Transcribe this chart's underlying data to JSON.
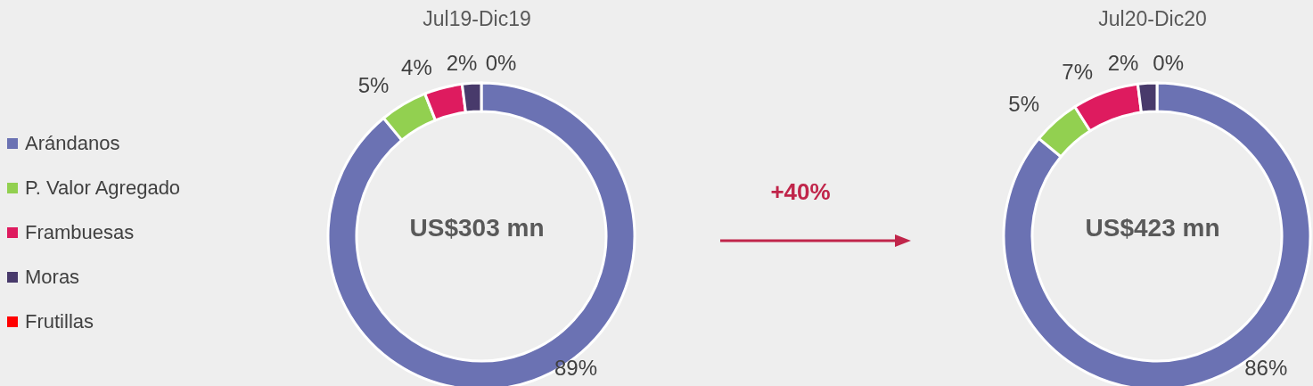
{
  "chart_data": [
    {
      "type": "donut",
      "title": "Jul19-Dic19",
      "categories": [
        "Arándanos",
        "P. Valor Agregado",
        "Frambuesas",
        "Moras",
        "Frutillas"
      ],
      "values": [
        89,
        5,
        4,
        2,
        0
      ],
      "colors": [
        "#6b72b3",
        "#92d050",
        "#de1b5f",
        "#483a6b",
        "#ff0000"
      ],
      "value_labels": [
        "89%",
        "5%",
        "4%",
        "2%",
        "0%"
      ],
      "annotations": [
        "US$303 mn",
        "+40%"
      ],
      "legend": "left"
    },
    {
      "type": "donut",
      "title": "Jul20-Dic20",
      "categories": [
        null,
        null,
        null,
        null,
        null
      ],
      "values": [
        86,
        5,
        7,
        2,
        0
      ],
      "colors": [
        "#6b72b3",
        "#92d050",
        "#de1b5f",
        "#483a6b",
        "#ff0000"
      ],
      "value_labels": [
        "86%",
        "5%",
        "7%",
        "2%",
        "0%"
      ],
      "annotations": [
        "US$423 mn"
      ]
    }
  ]
}
